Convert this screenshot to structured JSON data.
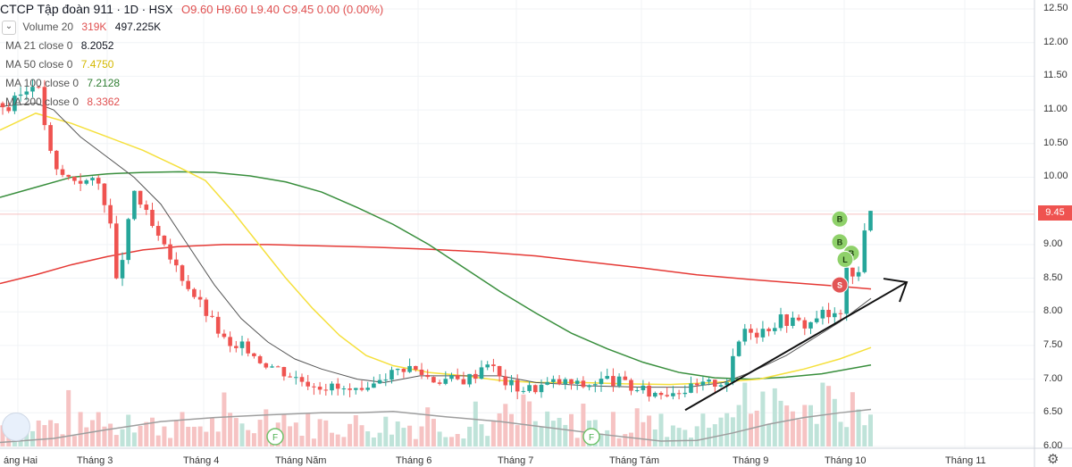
{
  "header": {
    "symbol": "CTCP Tập đoàn 911",
    "interval": "1D",
    "exchange": "HSX",
    "ohlc": "O9.60 H9.60 L9.40 C9.45 0.00 (0.00%)"
  },
  "indicators": [
    {
      "label": "Volume 20",
      "value1": "319K",
      "value2": "497.225K",
      "color": "#e05050"
    },
    {
      "label": "MA 21 close 0",
      "value1": "8.2052",
      "value2": "",
      "color": "#131722"
    },
    {
      "label": "MA 50 close 0",
      "value1": "7.4750",
      "value2": "",
      "color": "#e0c020"
    },
    {
      "label": "MA 100 close 0",
      "value1": "7.2128",
      "value2": "",
      "color": "#2e7d32"
    },
    {
      "label": "MA 200 close 0",
      "value1": "8.3362",
      "value2": "",
      "color": "#e05050"
    }
  ],
  "last_price": "9.45",
  "icons": {
    "collapse": "chevron-down-icon",
    "logo": "tradingview-logo-icon",
    "settings": "gear-icon"
  },
  "colors": {
    "up": "#26a69a",
    "down": "#ef5350",
    "ma21": "#555555",
    "ma50": "#f5e03c",
    "ma100": "#388e3c",
    "ma200": "#e53935",
    "price_line": "#f6c0c0"
  },
  "chart_data": {
    "type": "candlestick",
    "x_ticks": [
      "áng Hai",
      "Tháng 3",
      "Tháng 4",
      "Tháng Năm",
      "Tháng 6",
      "Tháng 7",
      "Tháng Tám",
      "Tháng 9",
      "Tháng 10",
      "Tháng 11"
    ],
    "y_ticks": [
      "12.50",
      "12.00",
      "11.50",
      "11.00",
      "10.50",
      "10.00",
      "9.50",
      "9.00",
      "8.50",
      "8.00",
      "7.50",
      "7.00",
      "6.50",
      "6.00"
    ],
    "ylim": [
      6.0,
      12.5
    ],
    "close_path": [
      [
        0,
        11.1
      ],
      [
        10,
        11.0
      ],
      [
        20,
        11.2
      ],
      [
        30,
        11.3
      ],
      [
        40,
        11.5
      ],
      [
        50,
        10.8
      ],
      [
        60,
        10.1
      ],
      [
        75,
        10.0
      ],
      [
        95,
        9.95
      ],
      [
        110,
        9.9
      ],
      [
        122,
        9.5
      ],
      [
        130,
        8.4
      ],
      [
        140,
        9.0
      ],
      [
        150,
        9.8
      ],
      [
        165,
        9.4
      ],
      [
        180,
        9.0
      ],
      [
        190,
        8.8
      ],
      [
        200,
        8.6
      ],
      [
        215,
        8.3
      ],
      [
        230,
        8.0
      ],
      [
        245,
        7.7
      ],
      [
        260,
        7.4
      ],
      [
        275,
        7.5
      ],
      [
        290,
        7.3
      ],
      [
        305,
        7.2
      ],
      [
        320,
        7.1
      ],
      [
        335,
        7.0
      ],
      [
        350,
        6.95
      ],
      [
        365,
        6.9
      ],
      [
        380,
        6.85
      ],
      [
        395,
        6.8
      ],
      [
        410,
        6.75
      ],
      [
        425,
        7.05
      ],
      [
        440,
        7.1
      ],
      [
        455,
        7.2
      ],
      [
        470,
        7.1
      ],
      [
        485,
        7.0
      ],
      [
        500,
        7.0
      ],
      [
        515,
        6.98
      ],
      [
        530,
        7.05
      ],
      [
        545,
        7.3
      ],
      [
        560,
        7.0
      ],
      [
        575,
        6.9
      ],
      [
        590,
        6.85
      ],
      [
        605,
        6.9
      ],
      [
        620,
        6.95
      ],
      [
        635,
        6.95
      ],
      [
        650,
        6.9
      ],
      [
        665,
        6.95
      ],
      [
        680,
        7.0
      ],
      [
        695,
        6.95
      ],
      [
        710,
        6.85
      ],
      [
        725,
        6.8
      ],
      [
        740,
        6.8
      ],
      [
        755,
        6.85
      ],
      [
        770,
        6.85
      ],
      [
        785,
        6.9
      ],
      [
        800,
        6.95
      ],
      [
        815,
        7.0
      ],
      [
        825,
        7.5
      ],
      [
        835,
        7.8
      ],
      [
        848,
        7.7
      ],
      [
        862,
        7.8
      ],
      [
        875,
        7.9
      ],
      [
        890,
        7.85
      ],
      [
        905,
        7.8
      ],
      [
        918,
        8.0
      ],
      [
        930,
        7.9
      ],
      [
        940,
        7.95
      ],
      [
        948,
        8.6
      ],
      [
        955,
        8.5
      ],
      [
        962,
        8.6
      ],
      [
        968,
        9.3
      ],
      [
        975,
        9.45
      ]
    ],
    "ma_curves": {
      "ma21": [
        [
          0,
          11.05
        ],
        [
          40,
          11.1
        ],
        [
          60,
          11.0
        ],
        [
          90,
          10.6
        ],
        [
          120,
          10.3
        ],
        [
          150,
          10.0
        ],
        [
          180,
          9.6
        ],
        [
          210,
          9.0
        ],
        [
          240,
          8.4
        ],
        [
          270,
          7.9
        ],
        [
          300,
          7.55
        ],
        [
          330,
          7.3
        ],
        [
          360,
          7.15
        ],
        [
          400,
          7.0
        ],
        [
          430,
          6.95
        ],
        [
          470,
          7.05
        ],
        [
          520,
          7.05
        ],
        [
          560,
          7.05
        ],
        [
          600,
          6.95
        ],
        [
          660,
          6.9
        ],
        [
          720,
          6.88
        ],
        [
          770,
          6.88
        ],
        [
          810,
          6.95
        ],
        [
          840,
          7.1
        ],
        [
          880,
          7.35
        ],
        [
          910,
          7.6
        ],
        [
          940,
          7.85
        ],
        [
          975,
          8.2
        ]
      ],
      "ma50": [
        [
          0,
          10.7
        ],
        [
          40,
          10.95
        ],
        [
          80,
          10.8
        ],
        [
          120,
          10.6
        ],
        [
          160,
          10.4
        ],
        [
          200,
          10.15
        ],
        [
          230,
          9.95
        ],
        [
          260,
          9.5
        ],
        [
          290,
          9.0
        ],
        [
          320,
          8.5
        ],
        [
          350,
          8.05
        ],
        [
          380,
          7.65
        ],
        [
          410,
          7.35
        ],
        [
          440,
          7.2
        ],
        [
          480,
          7.1
        ],
        [
          520,
          7.05
        ],
        [
          560,
          6.98
        ],
        [
          600,
          6.95
        ],
        [
          650,
          6.95
        ],
        [
          700,
          6.93
        ],
        [
          750,
          6.92
        ],
        [
          800,
          6.95
        ],
        [
          850,
          7.0
        ],
        [
          900,
          7.15
        ],
        [
          940,
          7.3
        ],
        [
          975,
          7.47
        ]
      ],
      "ma100": [
        [
          0,
          9.7
        ],
        [
          40,
          9.85
        ],
        [
          80,
          10.0
        ],
        [
          120,
          10.05
        ],
        [
          160,
          10.07
        ],
        [
          200,
          10.08
        ],
        [
          240,
          10.07
        ],
        [
          280,
          10.02
        ],
        [
          320,
          9.93
        ],
        [
          360,
          9.78
        ],
        [
          400,
          9.55
        ],
        [
          440,
          9.3
        ],
        [
          480,
          9.0
        ],
        [
          520,
          8.65
        ],
        [
          560,
          8.3
        ],
        [
          600,
          7.98
        ],
        [
          640,
          7.68
        ],
        [
          680,
          7.45
        ],
        [
          720,
          7.25
        ],
        [
          760,
          7.1
        ],
        [
          800,
          7.02
        ],
        [
          840,
          7.0
        ],
        [
          880,
          7.03
        ],
        [
          920,
          7.08
        ],
        [
          975,
          7.21
        ]
      ],
      "ma200": [
        [
          0,
          8.42
        ],
        [
          40,
          8.55
        ],
        [
          80,
          8.7
        ],
        [
          120,
          8.82
        ],
        [
          160,
          8.92
        ],
        [
          200,
          8.97
        ],
        [
          250,
          9.0
        ],
        [
          300,
          9.0
        ],
        [
          360,
          8.98
        ],
        [
          420,
          8.96
        ],
        [
          480,
          8.93
        ],
        [
          540,
          8.89
        ],
        [
          600,
          8.83
        ],
        [
          660,
          8.74
        ],
        [
          720,
          8.65
        ],
        [
          780,
          8.55
        ],
        [
          840,
          8.48
        ],
        [
          900,
          8.42
        ],
        [
          940,
          8.38
        ],
        [
          975,
          8.34
        ]
      ]
    },
    "volume_ma": [
      [
        0,
        6.06
      ],
      [
        60,
        6.12
      ],
      [
        120,
        6.25
      ],
      [
        180,
        6.37
      ],
      [
        240,
        6.43
      ],
      [
        300,
        6.47
      ],
      [
        360,
        6.5
      ],
      [
        400,
        6.5
      ],
      [
        440,
        6.52
      ],
      [
        500,
        6.44
      ],
      [
        560,
        6.37
      ],
      [
        620,
        6.27
      ],
      [
        680,
        6.17
      ],
      [
        740,
        6.08
      ],
      [
        780,
        6.09
      ],
      [
        820,
        6.2
      ],
      [
        860,
        6.33
      ],
      [
        900,
        6.43
      ],
      [
        940,
        6.5
      ],
      [
        975,
        6.55
      ]
    ],
    "trend_arrow": [
      [
        767,
        6.54
      ],
      [
        1015,
        8.44
      ]
    ],
    "signals": [
      {
        "label": "B",
        "x": 940,
        "price": 9.38,
        "kind": "buy"
      },
      {
        "label": "B",
        "x": 940,
        "price": 9.04,
        "kind": "buy"
      },
      {
        "label": "B",
        "x": 953,
        "price": 8.87,
        "kind": "buy"
      },
      {
        "label": "L",
        "x": 946,
        "price": 8.78,
        "kind": "buy"
      },
      {
        "label": "S",
        "x": 940,
        "price": 8.4,
        "kind": "sell"
      }
    ],
    "dividends": [
      {
        "label": "F",
        "x": 308
      },
      {
        "label": "F",
        "x": 662
      }
    ]
  }
}
